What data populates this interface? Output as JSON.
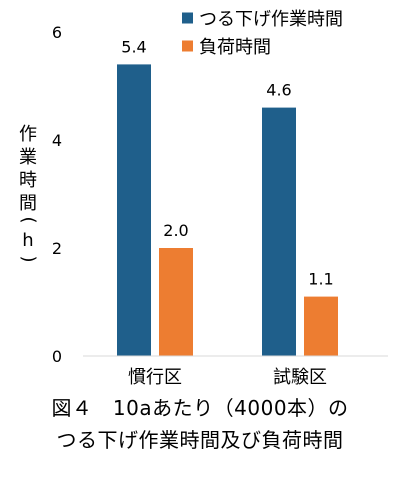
{
  "chart_data": {
    "type": "bar",
    "categories": [
      "慣行区",
      "試験区"
    ],
    "series": [
      {
        "name": "つる下げ作業時間",
        "values": [
          5.4,
          4.6
        ],
        "color": "#1F5F8B"
      },
      {
        "name": "負荷時間",
        "values": [
          2.0,
          1.1
        ],
        "color": "#ED7D31"
      }
    ],
    "data_labels": [
      [
        "5.4",
        "4.6"
      ],
      [
        "2.0",
        "1.1"
      ]
    ],
    "ylabel": "作業時間(h)",
    "ylim": [
      0,
      6
    ],
    "yticks": [
      "0",
      "2",
      "4",
      "6"
    ],
    "grid": false,
    "legend_position": "top-right"
  },
  "caption": {
    "line1": "図４　10aあたり（4000本）の",
    "line2": "つる下げ作業時間及び負荷時間"
  }
}
